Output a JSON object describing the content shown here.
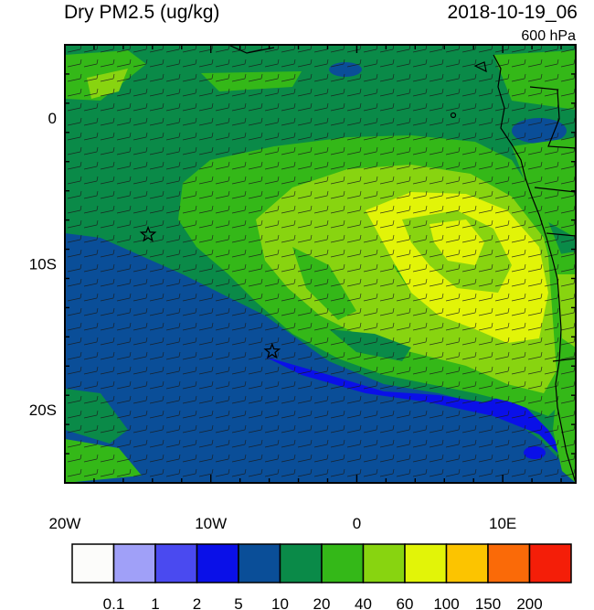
{
  "header": {
    "variable": "Dry PM2.5 (ug/kg)",
    "datetime": "2018-10-19_06",
    "level": "600 hPa"
  },
  "axes": {
    "lon_ticks": [
      {
        "value": -20,
        "label": "20W"
      },
      {
        "value": -10,
        "label": "10W"
      },
      {
        "value": 0,
        "label": "0"
      },
      {
        "value": 10,
        "label": "10E"
      }
    ],
    "lat_ticks": [
      {
        "value": 0,
        "label": "0"
      },
      {
        "value": -10,
        "label": "10S"
      },
      {
        "value": -20,
        "label": "20S"
      }
    ],
    "lon_range": [
      -20,
      15
    ],
    "lat_range": [
      -25,
      5
    ]
  },
  "markers": [
    {
      "name": "star-marker-1",
      "lon": -14.3,
      "lat": -8.0
    },
    {
      "name": "star-marker-2",
      "lon": -5.8,
      "lat": -16.0
    }
  ],
  "colorbar": {
    "colors": [
      "#fcfcfa",
      "#a0a0f8",
      "#4a4af0",
      "#0a10e8",
      "#0a4e98",
      "#0a8a48",
      "#34b818",
      "#88d410",
      "#e2f408",
      "#fcc400",
      "#fa6a08",
      "#f41e08"
    ],
    "labels": [
      "0.1",
      "1",
      "2",
      "5",
      "10",
      "20",
      "40",
      "60",
      "100",
      "150",
      "200"
    ]
  }
}
